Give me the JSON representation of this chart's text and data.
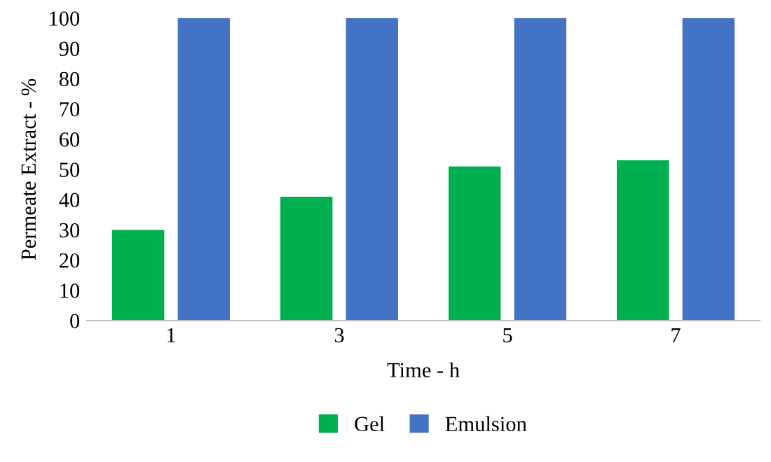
{
  "chart_data": {
    "type": "bar",
    "xlabel": "Time - h",
    "ylabel": "Permeate Extract - %",
    "categories": [
      "1",
      "3",
      "5",
      "7"
    ],
    "series": [
      {
        "name": "Gel",
        "color": "#00b050",
        "values": [
          30,
          41,
          51,
          53
        ]
      },
      {
        "name": "Emulsion",
        "color": "#4472c4",
        "values": [
          100,
          100,
          100,
          100
        ]
      }
    ],
    "ylim": [
      0,
      100
    ],
    "yticks": [
      0,
      10,
      20,
      30,
      40,
      50,
      60,
      70,
      80,
      90,
      100
    ],
    "grid": false,
    "legend": "bottom"
  }
}
